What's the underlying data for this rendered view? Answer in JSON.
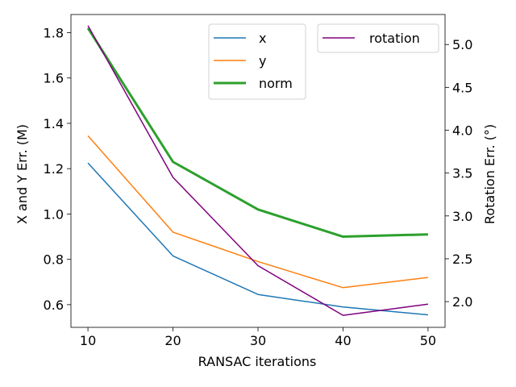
{
  "chart_data": {
    "type": "line",
    "xlabel": "RANSAC iterations",
    "ylabel_left": "X and Y Err. (M)",
    "ylabel_right": "Rotation Err. (°)",
    "x": [
      10,
      20,
      30,
      40,
      50
    ],
    "xlim": [
      8,
      52
    ],
    "ylim_left": [
      0.5,
      1.88
    ],
    "ylim_right": [
      1.7,
      5.35
    ],
    "xticks": [
      10,
      20,
      30,
      40,
      50
    ],
    "xtick_labels": [
      "10",
      "20",
      "30",
      "40",
      "50"
    ],
    "yticks_left": [
      0.6,
      0.8,
      1.0,
      1.2,
      1.4,
      1.6,
      1.8
    ],
    "ytick_labels_left": [
      "0.6",
      "0.8",
      "1.0",
      "1.2",
      "1.4",
      "1.6",
      "1.8"
    ],
    "yticks_right": [
      2.0,
      2.5,
      3.0,
      3.5,
      4.0,
      4.5,
      5.0
    ],
    "ytick_labels_right": [
      "2.0",
      "2.5",
      "3.0",
      "3.5",
      "4.0",
      "4.5",
      "5.0"
    ],
    "series_left": [
      {
        "name": "x",
        "color": "#1f77b4",
        "width": 1.5,
        "values": [
          1.225,
          0.815,
          0.645,
          0.59,
          0.555
        ]
      },
      {
        "name": "y",
        "color": "#ff7f0e",
        "width": 1.5,
        "values": [
          1.345,
          0.92,
          0.79,
          0.675,
          0.72
        ]
      },
      {
        "name": "norm",
        "color": "#2ca02c",
        "width": 3,
        "values": [
          1.82,
          1.23,
          1.02,
          0.9,
          0.91
        ]
      }
    ],
    "series_right": [
      {
        "name": "rotation",
        "color": "#800080",
        "width": 1.5,
        "values": [
          5.22,
          3.45,
          2.42,
          1.84,
          1.97
        ]
      }
    ],
    "legend_left": {
      "position": "upper-center",
      "entries": [
        "x",
        "y",
        "norm"
      ]
    },
    "legend_right": {
      "position": "upper-right",
      "entries": [
        "rotation"
      ]
    }
  }
}
